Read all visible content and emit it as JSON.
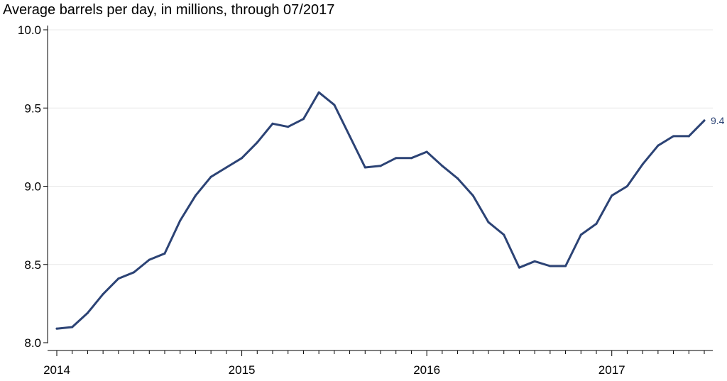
{
  "chart_data": {
    "type": "line",
    "title": "Average barrels per day, in millions, through 07/2017",
    "xlabel": "",
    "ylabel": "",
    "ylim": [
      8.0,
      10.0
    ],
    "yticks": [
      "8.0",
      "8.5",
      "9.0",
      "9.5",
      "10.0"
    ],
    "xlim": [
      "2014-01",
      "2017-07"
    ],
    "xticks": [
      "2014",
      "2015",
      "2016",
      "2017"
    ],
    "grid": true,
    "line_color": "#2c4375",
    "end_label": "9.4",
    "series": [
      {
        "x": [
          "2014-01",
          "2014-02",
          "2014-03",
          "2014-04",
          "2014-05",
          "2014-06",
          "2014-07",
          "2014-08",
          "2014-09",
          "2014-10",
          "2014-11",
          "2014-12",
          "2015-01",
          "2015-02",
          "2015-03",
          "2015-04",
          "2015-05",
          "2015-06",
          "2015-07",
          "2015-08",
          "2015-09",
          "2015-10",
          "2015-11",
          "2015-12",
          "2016-01",
          "2016-02",
          "2016-03",
          "2016-04",
          "2016-05",
          "2016-06",
          "2016-07",
          "2016-08",
          "2016-09",
          "2016-10",
          "2016-11",
          "2016-12",
          "2017-01",
          "2017-02",
          "2017-03",
          "2017-04",
          "2017-05",
          "2017-06",
          "2017-07"
        ],
        "values": [
          8.09,
          8.1,
          8.19,
          8.31,
          8.41,
          8.45,
          8.53,
          8.57,
          8.78,
          8.94,
          9.06,
          9.12,
          9.18,
          9.28,
          9.4,
          9.38,
          9.43,
          9.6,
          9.52,
          9.32,
          9.12,
          9.13,
          9.18,
          9.18,
          9.22,
          9.13,
          9.05,
          8.94,
          8.77,
          8.69,
          8.48,
          8.52,
          8.49,
          8.49,
          8.69,
          8.76,
          8.94,
          9.0,
          9.14,
          9.26,
          9.32,
          9.32,
          9.42
        ]
      }
    ]
  }
}
